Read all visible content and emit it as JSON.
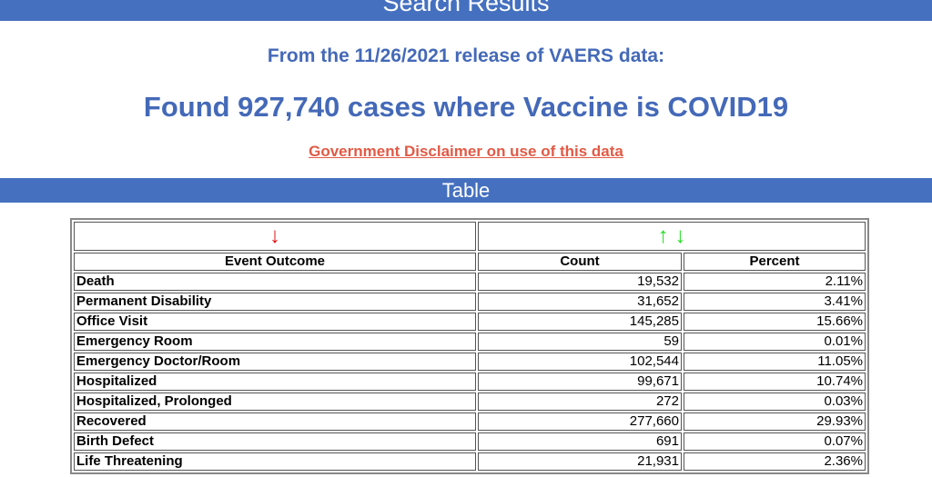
{
  "header": {
    "title": "Search Results"
  },
  "release_line": "From the 11/26/2021 release of VAERS data:",
  "found_line": "Found 927,740 cases where Vaccine is COVID19",
  "disclaimer_link": "Government Disclaimer on use of this data",
  "table_bar": "Table",
  "sort": {
    "left_arrow": "↓",
    "up_arrow": "↑",
    "down_arrow": "↓"
  },
  "columns": [
    "Event Outcome",
    "Count",
    "Percent"
  ],
  "rows": [
    [
      "Death",
      "19,532",
      "2.11%"
    ],
    [
      "Permanent Disability",
      "31,652",
      "3.41%"
    ],
    [
      "Office Visit",
      "145,285",
      "15.66%"
    ],
    [
      "Emergency Room",
      "59",
      "0.01%"
    ],
    [
      "Emergency Doctor/Room",
      "102,544",
      "11.05%"
    ],
    [
      "Hospitalized",
      "99,671",
      "10.74%"
    ],
    [
      "Hospitalized, Prolonged",
      "272",
      "0.03%"
    ],
    [
      "Recovered",
      "277,660",
      "29.93%"
    ],
    [
      "Birth Defect",
      "691",
      "0.07%"
    ],
    [
      "Life Threatening",
      "21,931",
      "2.36%"
    ]
  ],
  "colors": {
    "bar": "#4570bf",
    "title": "#4469b8",
    "link": "#e25a45",
    "sort_active": "#e01010",
    "sort_inactive": "#22dd22"
  }
}
